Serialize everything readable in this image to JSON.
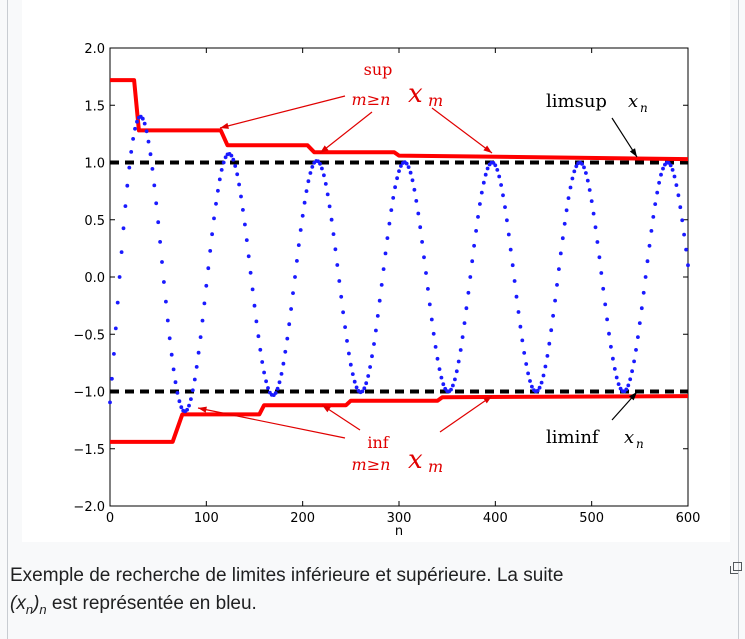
{
  "colors": {
    "sequence": "#1a1aff",
    "envelope": "#ff0000",
    "limit_lines": "#000000",
    "annotation_red": "#e00000",
    "caption_text": "#202122"
  },
  "chart_data": {
    "type": "line",
    "xlabel": "n",
    "ylabel": "",
    "title": "",
    "xlim": [
      0,
      600
    ],
    "ylim": [
      -2.0,
      2.0
    ],
    "xticks": [
      "0",
      "100",
      "200",
      "300",
      "400",
      "500",
      "600"
    ],
    "yticks": [
      "2.0",
      "1.5",
      "1.0",
      "0.5",
      "0.0",
      "−0.5",
      "−1.0",
      "−1.5",
      "−2.0"
    ],
    "grid": false,
    "series": [
      {
        "style": "dotted",
        "color": "#1a1aff",
        "description_formula": "x_n = (1 + 0.72*exp(-n/55)) * sin(2*pi*(n-10)/91)"
      },
      {
        "style": "solid",
        "color": "#ff0000",
        "upper_steps": [
          [
            0,
            1.72
          ],
          [
            25,
            1.72
          ],
          [
            30,
            1.28
          ],
          [
            115,
            1.28
          ],
          [
            122,
            1.15
          ],
          [
            205,
            1.15
          ],
          [
            212,
            1.09
          ],
          [
            295,
            1.09
          ],
          [
            300,
            1.06
          ],
          [
            600,
            1.03
          ]
        ],
        "lower_steps": [
          [
            0,
            -1.44
          ],
          [
            65,
            -1.44
          ],
          [
            75,
            -1.2
          ],
          [
            155,
            -1.2
          ],
          [
            160,
            -1.12
          ],
          [
            245,
            -1.12
          ],
          [
            250,
            -1.08
          ],
          [
            340,
            -1.08
          ],
          [
            345,
            -1.05
          ],
          [
            600,
            -1.04
          ]
        ]
      },
      {
        "style": "dashed",
        "color": "#000000",
        "y_values": [
          1.0,
          -1.0
        ]
      }
    ],
    "annotations": {
      "sup_top": "sup",
      "sup_bottom": "m≥n",
      "inf_top": "inf",
      "inf_bottom": "m≥n",
      "x_m": "x",
      "x_m_sub": "m",
      "limsup_word": "limsup",
      "liminf_word": "liminf",
      "x_n": "x",
      "x_n_sub": "n"
    }
  },
  "caption": {
    "line1": "Exemple de recherche de limites inférieure et supérieure. La suite",
    "seq_open": "(x",
    "seq_sub": "n",
    "seq_close": ")",
    "seq_sub2": "n",
    "line2_rest": " est représentée en bleu."
  },
  "icons": {
    "enlarge": "enlarge-icon"
  }
}
